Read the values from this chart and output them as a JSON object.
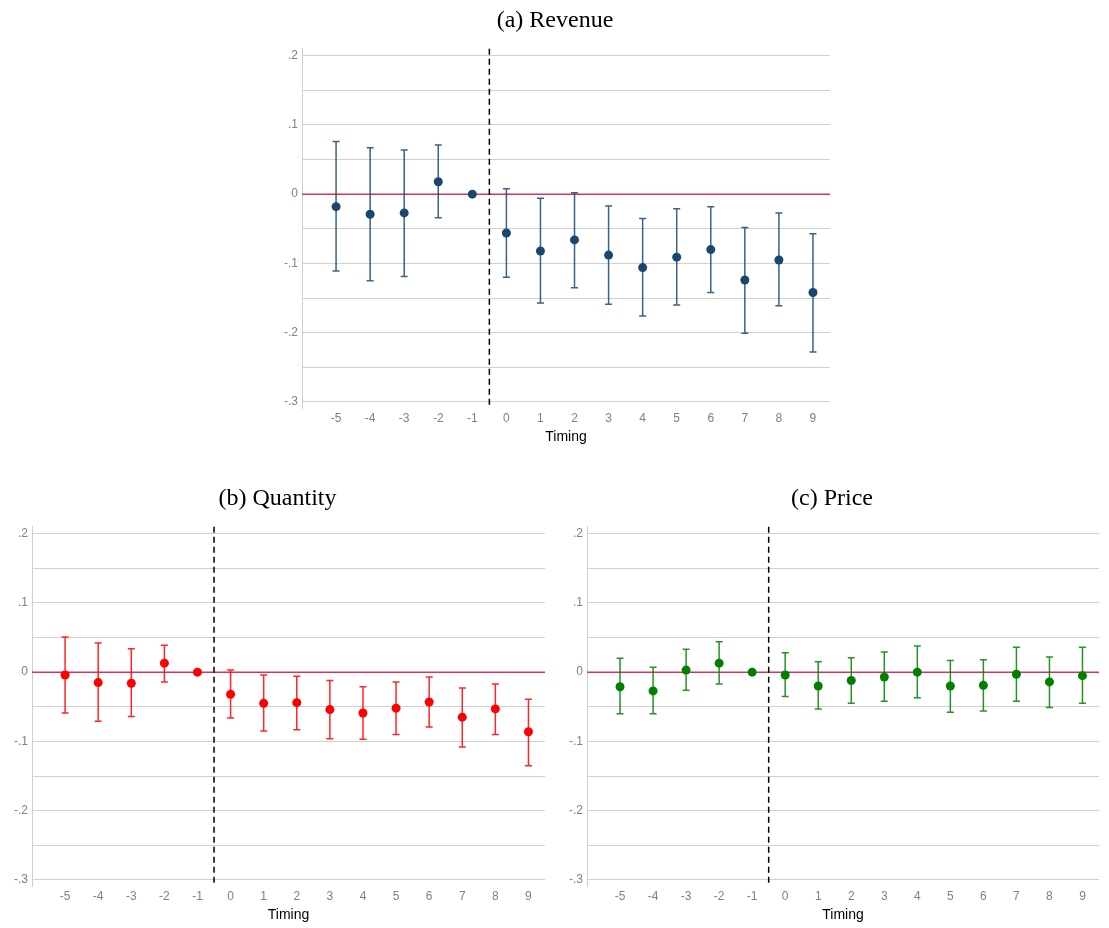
{
  "chart_data": [
    {
      "type": "scatter",
      "title": "(a) Revenue",
      "xlabel": "Timing",
      "marker": "circle",
      "grid": "y",
      "x": [
        -5,
        -4,
        -3,
        -2,
        -1,
        0,
        1,
        2,
        3,
        4,
        5,
        6,
        7,
        8,
        9
      ],
      "xlim": [
        -6,
        9.5
      ],
      "xticks": [
        -5,
        -4,
        -3,
        -2,
        -1,
        0,
        1,
        2,
        3,
        4,
        5,
        6,
        7,
        8,
        9
      ],
      "ylim": [
        -0.31,
        0.21
      ],
      "yticks": [
        {
          "value": -0.3,
          "label": "-.3"
        },
        {
          "value": -0.25,
          "label": null
        },
        {
          "value": -0.2,
          "label": "-.2"
        },
        {
          "value": -0.15,
          "label": null
        },
        {
          "value": -0.1,
          "label": "-.1"
        },
        {
          "value": -0.05,
          "label": null
        },
        {
          "value": 0,
          "label": "0"
        },
        {
          "value": 0.05,
          "label": null
        },
        {
          "value": 0.1,
          "label": ".1"
        },
        {
          "value": 0.15,
          "label": null
        },
        {
          "value": 0.2,
          "label": ".2"
        }
      ],
      "series": [
        {
          "color": "#1a476f",
          "values": [
            -0.018,
            -0.029,
            -0.027,
            0.018,
            0,
            -0.056,
            -0.082,
            -0.066,
            -0.088,
            -0.106,
            -0.091,
            -0.08,
            -0.124,
            -0.095,
            -0.142
          ],
          "errors": [
            [
              -0.111,
              0.076
            ],
            [
              -0.125,
              0.067
            ],
            [
              -0.119,
              0.064
            ],
            [
              -0.034,
              0.071
            ],
            null,
            [
              -0.12,
              0.008
            ],
            [
              -0.157,
              -0.006
            ],
            [
              -0.135,
              0.002
            ],
            [
              -0.159,
              -0.017
            ],
            [
              -0.176,
              -0.035
            ],
            [
              -0.16,
              -0.021
            ],
            [
              -0.142,
              -0.018
            ],
            [
              -0.201,
              -0.048
            ],
            [
              -0.161,
              -0.027
            ],
            [
              -0.228,
              -0.057
            ]
          ]
        }
      ],
      "ref_lines": [
        {
          "axis": "y",
          "value": 0,
          "color": "#d6345f"
        },
        {
          "axis": "x",
          "value": -0.5,
          "color": "#000000",
          "line_style": "dashed"
        }
      ]
    },
    {
      "type": "scatter",
      "title": "(b) Quantity",
      "xlabel": "Timing",
      "marker": "circle",
      "grid": "y",
      "x": [
        -5,
        -4,
        -3,
        -2,
        -1,
        0,
        1,
        2,
        3,
        4,
        5,
        6,
        7,
        8,
        9
      ],
      "xlim": [
        -6,
        9.5
      ],
      "xticks": [
        -5,
        -4,
        -3,
        -2,
        -1,
        0,
        1,
        2,
        3,
        4,
        5,
        6,
        7,
        8,
        9
      ],
      "ylim": [
        -0.31,
        0.21
      ],
      "yticks": [
        {
          "value": -0.3,
          "label": "-.3"
        },
        {
          "value": -0.25,
          "label": null
        },
        {
          "value": -0.2,
          "label": "-.2"
        },
        {
          "value": -0.15,
          "label": null
        },
        {
          "value": -0.1,
          "label": "-.1"
        },
        {
          "value": -0.05,
          "label": null
        },
        {
          "value": 0,
          "label": "0"
        },
        {
          "value": 0.05,
          "label": null
        },
        {
          "value": 0.1,
          "label": ".1"
        },
        {
          "value": 0.15,
          "label": null
        },
        {
          "value": 0.2,
          "label": ".2"
        }
      ],
      "series": [
        {
          "color": "#ff0000",
          "values": [
            -0.004,
            -0.015,
            -0.016,
            0.013,
            0,
            -0.032,
            -0.045,
            -0.044,
            -0.054,
            -0.059,
            -0.052,
            -0.043,
            -0.065,
            -0.053,
            -0.086
          ],
          "errors": [
            [
              -0.059,
              0.051
            ],
            [
              -0.071,
              0.042
            ],
            [
              -0.064,
              0.034
            ],
            [
              -0.014,
              0.039
            ],
            null,
            [
              -0.066,
              0.003
            ],
            [
              -0.085,
              -0.004
            ],
            [
              -0.083,
              -0.006
            ],
            [
              -0.096,
              -0.012
            ],
            [
              -0.097,
              -0.021
            ],
            [
              -0.09,
              -0.014
            ],
            [
              -0.079,
              -0.007
            ],
            [
              -0.108,
              -0.023
            ],
            [
              -0.09,
              -0.017
            ],
            [
              -0.135,
              -0.039
            ]
          ]
        }
      ],
      "ref_lines": [
        {
          "axis": "y",
          "value": 0,
          "color": "#d6345f"
        },
        {
          "axis": "x",
          "value": -0.5,
          "color": "#000000",
          "line_style": "dashed"
        }
      ]
    },
    {
      "type": "scatter",
      "title": "(c) Price",
      "xlabel": "Timing",
      "marker": "circle",
      "grid": "y",
      "x": [
        -5,
        -4,
        -3,
        -2,
        -1,
        0,
        1,
        2,
        3,
        4,
        5,
        6,
        7,
        8,
        9
      ],
      "xlim": [
        -6,
        9.5
      ],
      "xticks": [
        -5,
        -4,
        -3,
        -2,
        -1,
        0,
        1,
        2,
        3,
        4,
        5,
        6,
        7,
        8,
        9
      ],
      "ylim": [
        -0.31,
        0.21
      ],
      "yticks": [
        {
          "value": -0.3,
          "label": "-.3"
        },
        {
          "value": -0.25,
          "label": null
        },
        {
          "value": -0.2,
          "label": "-.2"
        },
        {
          "value": -0.15,
          "label": null
        },
        {
          "value": -0.1,
          "label": "-.1"
        },
        {
          "value": -0.05,
          "label": null
        },
        {
          "value": 0,
          "label": "0"
        },
        {
          "value": 0.05,
          "label": null
        },
        {
          "value": 0.1,
          "label": ".1"
        },
        {
          "value": 0.15,
          "label": null
        },
        {
          "value": 0.2,
          "label": ".2"
        }
      ],
      "series": [
        {
          "color": "#008000",
          "values": [
            -0.021,
            -0.027,
            0.003,
            0.013,
            0,
            -0.004,
            -0.02,
            -0.012,
            -0.007,
            0,
            -0.02,
            -0.019,
            -0.003,
            -0.014,
            -0.005
          ],
          "errors": [
            [
              -0.06,
              0.02
            ],
            [
              -0.06,
              0.007
            ],
            [
              -0.026,
              0.033
            ],
            [
              -0.017,
              0.044
            ],
            null,
            [
              -0.035,
              0.028
            ],
            [
              -0.053,
              0.015
            ],
            [
              -0.045,
              0.021
            ],
            [
              -0.042,
              0.029
            ],
            [
              -0.037,
              0.038
            ],
            [
              -0.058,
              0.017
            ],
            [
              -0.056,
              0.018
            ],
            [
              -0.042,
              0.036
            ],
            [
              -0.051,
              0.022
            ],
            [
              -0.045,
              0.036
            ]
          ]
        }
      ],
      "ref_lines": [
        {
          "axis": "y",
          "value": 0,
          "color": "#d6345f"
        },
        {
          "axis": "x",
          "value": -0.5,
          "color": "#000000",
          "line_style": "dashed"
        }
      ]
    }
  ]
}
